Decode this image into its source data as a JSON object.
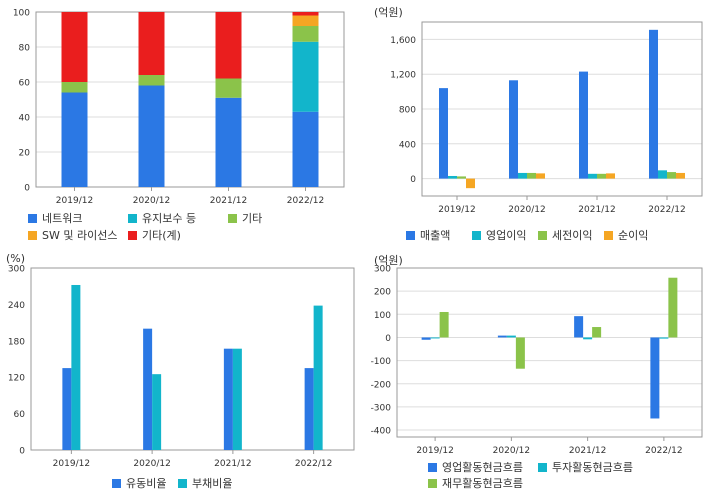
{
  "colors": {
    "blue": "#2b78e4",
    "cyan": "#12b5cb",
    "green": "#8bc34a",
    "orange": "#f5a623",
    "red": "#ea1e1e",
    "grid": "#dddddd",
    "axis": "#999999",
    "text": "#333333"
  },
  "chart_data": [
    {
      "id": "revenue_mix",
      "type": "bar",
      "stacked": true,
      "categories": [
        "2019/12",
        "2020/12",
        "2021/12",
        "2022/12"
      ],
      "series": [
        {
          "name": "네트워크",
          "color": "blue",
          "values": [
            54,
            58,
            51,
            43
          ]
        },
        {
          "name": "유지보수 등",
          "color": "cyan",
          "values": [
            0,
            0,
            0,
            40
          ]
        },
        {
          "name": "기타",
          "color": "green",
          "values": [
            6,
            6,
            11,
            9
          ]
        },
        {
          "name": "SW 및 라이선스",
          "color": "orange",
          "values": [
            0,
            0,
            0,
            6
          ]
        },
        {
          "name": "기타(계)",
          "color": "red",
          "values": [
            40,
            36,
            38,
            2
          ]
        }
      ],
      "ylim": [
        0,
        100
      ],
      "yticks": [
        0,
        20,
        40,
        60,
        80,
        100
      ],
      "unit": "",
      "grid": true,
      "legend_position": "bottom"
    },
    {
      "id": "income",
      "type": "bar",
      "categories": [
        "2019/12",
        "2020/12",
        "2021/12",
        "2022/12"
      ],
      "series": [
        {
          "name": "매출액",
          "color": "blue",
          "values": [
            1040,
            1130,
            1230,
            1710
          ]
        },
        {
          "name": "영업이익",
          "color": "cyan",
          "values": [
            30,
            65,
            55,
            95
          ]
        },
        {
          "name": "세전이익",
          "color": "green",
          "values": [
            25,
            65,
            55,
            75
          ]
        },
        {
          "name": "순이익",
          "color": "orange",
          "values": [
            -110,
            60,
            60,
            65
          ]
        }
      ],
      "ylim": [
        -200,
        1800
      ],
      "yticks": [
        0,
        400,
        800,
        1200,
        1600
      ],
      "ytick_labels": [
        "0",
        "400",
        "800",
        "1,200",
        "1,600"
      ],
      "unit": "(억원)",
      "grid": true,
      "legend_position": "bottom"
    },
    {
      "id": "ratios",
      "type": "bar",
      "categories": [
        "2019/12",
        "2020/12",
        "2021/12",
        "2022/12"
      ],
      "series": [
        {
          "name": "유동비율",
          "color": "blue",
          "values": [
            135,
            200,
            167,
            135
          ]
        },
        {
          "name": "부채비율",
          "color": "cyan",
          "values": [
            272,
            125,
            167,
            238
          ]
        }
      ],
      "ylim": [
        0,
        300
      ],
      "yticks": [
        0,
        60,
        120,
        180,
        240,
        300
      ],
      "unit": "(%)",
      "grid": false,
      "legend_position": "bottom"
    },
    {
      "id": "cashflow",
      "type": "bar",
      "categories": [
        "2019/12",
        "2020/12",
        "2021/12",
        "2022/12"
      ],
      "series": [
        {
          "name": "영업활동현금흐름",
          "color": "blue",
          "values": [
            -10,
            8,
            92,
            -350
          ]
        },
        {
          "name": "투자활동현금흐름",
          "color": "cyan",
          "values": [
            0,
            8,
            -8,
            -5
          ]
        },
        {
          "name": "재무활동현금흐름",
          "color": "green",
          "values": [
            110,
            -135,
            45,
            258
          ]
        }
      ],
      "ylim": [
        -430,
        300
      ],
      "yticks": [
        -400,
        -300,
        -200,
        -100,
        0,
        100,
        200,
        300
      ],
      "unit": "(억원)",
      "grid": true,
      "legend_position": "bottom"
    }
  ]
}
